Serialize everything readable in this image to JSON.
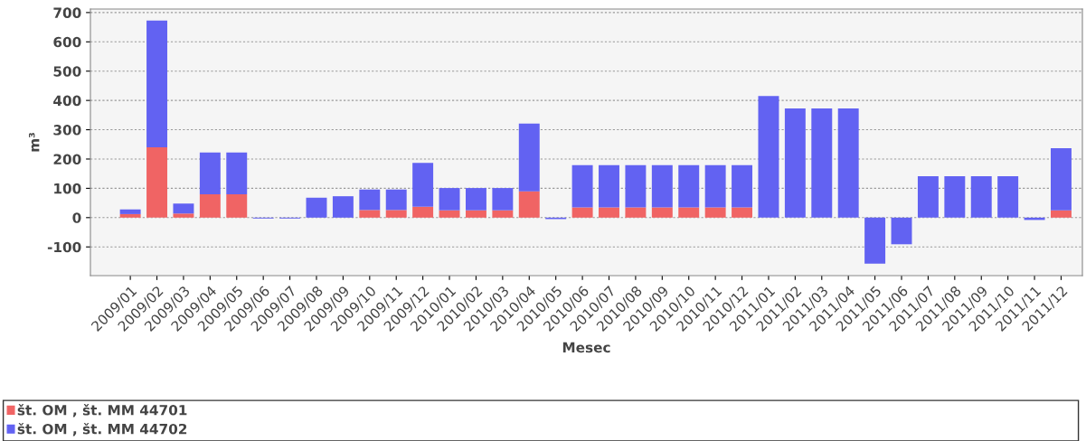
{
  "chart_data": {
    "type": "bar",
    "stacked": true,
    "xlabel": "Mesec",
    "ylabel": "m³",
    "categories": [
      "2009/01",
      "2009/02",
      "2009/03",
      "2009/04",
      "2009/05",
      "2009/06",
      "2009/07",
      "2009/08",
      "2009/09",
      "2009/10",
      "2009/11",
      "2009/12",
      "2010/01",
      "2010/02",
      "2010/03",
      "2010/04",
      "2010/05",
      "2010/06",
      "2010/07",
      "2010/08",
      "2010/09",
      "2010/10",
      "2010/11",
      "2010/12",
      "2011/01",
      "2011/02",
      "2011/03",
      "2011/04",
      "2011/05",
      "2011/06",
      "2011/07",
      "2011/08",
      "2011/09",
      "2011/10",
      "2011/11",
      "2011/12"
    ],
    "series": [
      {
        "name": "št. OM , št. MM 44701",
        "color": "#f06464",
        "values": [
          12,
          240,
          14,
          80,
          80,
          null,
          null,
          null,
          null,
          26,
          26,
          37,
          25,
          25,
          25,
          90,
          null,
          35,
          35,
          35,
          35,
          35,
          35,
          35,
          null,
          null,
          null,
          null,
          null,
          null,
          null,
          null,
          null,
          null,
          null,
          25
        ]
      },
      {
        "name": "št. OM , št. MM 44702",
        "color": "#6262f2",
        "values": [
          16,
          433,
          34,
          142,
          142,
          -3,
          -3,
          68,
          73,
          70,
          70,
          150,
          76,
          76,
          76,
          231,
          -5,
          144,
          144,
          144,
          144,
          144,
          144,
          144,
          415,
          373,
          373,
          373,
          -157,
          -91,
          141,
          141,
          141,
          141,
          -8,
          212
        ]
      }
    ],
    "ylim": [
      -198,
      712
    ],
    "yticks": [
      -100,
      0,
      100,
      200,
      300,
      400,
      500,
      600,
      700
    ],
    "grid": "y",
    "legend": "bottom"
  }
}
